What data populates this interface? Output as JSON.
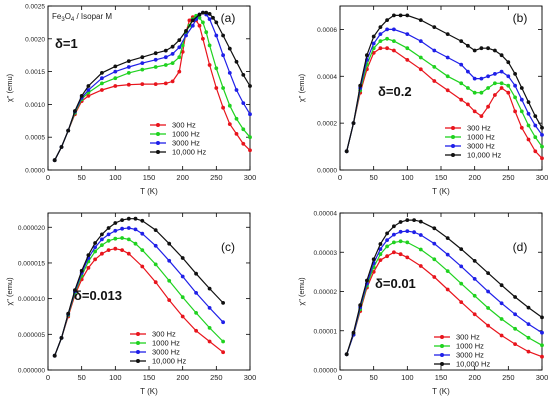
{
  "figure": {
    "xlabel": "T (K)",
    "legend_labels": [
      "300 Hz",
      "1000 Hz",
      "3000 Hz",
      "10,000 Hz"
    ],
    "series_colors": [
      "#e8141c",
      "#1fd21f",
      "#1f1fe8",
      "#101010"
    ]
  },
  "chart_data": [
    {
      "type": "line",
      "panel": "(a)",
      "annotation_pre": "Fe",
      "annotation_sub1": "3",
      "annotation_mid": "O",
      "annotation_sub2": "4",
      "annotation_post": " / Isopar M",
      "delta_label": "δ=1",
      "ylabel": "χ\" (emu)",
      "xlabel": "",
      "xlim": [
        0,
        300
      ],
      "ylim": [
        0,
        0.0025
      ],
      "xticks": [
        "0",
        "50",
        "100",
        "150",
        "200",
        "250",
        "300"
      ],
      "yticks": [
        "0.0000",
        "0.0005",
        "0.0010",
        "0.0015",
        "0.0020",
        "0.0025"
      ],
      "series": [
        {
          "name": "300 Hz",
          "x": [
            10,
            20,
            30,
            40,
            50,
            60,
            80,
            100,
            120,
            140,
            160,
            175,
            185,
            195,
            200,
            205,
            210,
            215,
            220,
            225,
            230,
            240,
            250,
            260,
            270,
            280,
            290,
            300
          ],
          "y": [
            0.00015,
            0.00035,
            0.0006,
            0.00085,
            0.00105,
            0.00113,
            0.00122,
            0.00128,
            0.0013,
            0.00131,
            0.00131,
            0.00132,
            0.00135,
            0.0015,
            0.0018,
            0.0021,
            0.00228,
            0.00233,
            0.00228,
            0.0022,
            0.002,
            0.0016,
            0.00125,
            0.00095,
            0.0007,
            0.00055,
            0.0004,
            0.0003
          ]
        },
        {
          "name": "1000 Hz",
          "x": [
            10,
            20,
            30,
            40,
            50,
            60,
            80,
            100,
            120,
            140,
            160,
            175,
            185,
            195,
            200,
            205,
            210,
            215,
            220,
            225,
            230,
            235,
            240,
            250,
            260,
            270,
            280,
            290,
            300
          ],
          "y": [
            0.00015,
            0.00035,
            0.0006,
            0.00087,
            0.00108,
            0.00118,
            0.00132,
            0.0014,
            0.00148,
            0.00153,
            0.00157,
            0.0016,
            0.00163,
            0.00172,
            0.0019,
            0.0021,
            0.0022,
            0.0023,
            0.00235,
            0.00232,
            0.00225,
            0.0021,
            0.0019,
            0.00155,
            0.00125,
            0.00098,
            0.00078,
            0.00062,
            0.0005
          ]
        },
        {
          "name": "3000 Hz",
          "x": [
            10,
            20,
            30,
            40,
            50,
            60,
            80,
            100,
            120,
            140,
            160,
            175,
            185,
            195,
            205,
            215,
            220,
            225,
            230,
            235,
            240,
            250,
            260,
            270,
            280,
            290,
            300
          ],
          "y": [
            0.00015,
            0.00035,
            0.0006,
            0.00089,
            0.0011,
            0.00122,
            0.0014,
            0.0015,
            0.00157,
            0.00163,
            0.00168,
            0.00172,
            0.00177,
            0.00187,
            0.00205,
            0.0022,
            0.0023,
            0.00237,
            0.0024,
            0.00237,
            0.0023,
            0.00205,
            0.00175,
            0.00148,
            0.00122,
            0.00102,
            0.00085
          ]
        },
        {
          "name": "10,000 Hz",
          "x": [
            10,
            20,
            30,
            40,
            50,
            60,
            80,
            100,
            120,
            140,
            160,
            175,
            185,
            195,
            205,
            215,
            225,
            230,
            235,
            240,
            245,
            250,
            260,
            270,
            280,
            290,
            300
          ],
          "y": [
            0.00015,
            0.00035,
            0.0006,
            0.0009,
            0.00113,
            0.00128,
            0.00148,
            0.00158,
            0.00166,
            0.00172,
            0.00178,
            0.00182,
            0.00188,
            0.00198,
            0.00212,
            0.00228,
            0.00237,
            0.0024,
            0.0024,
            0.00238,
            0.00232,
            0.00225,
            0.00205,
            0.00185,
            0.00165,
            0.00145,
            0.00128
          ]
        }
      ]
    },
    {
      "type": "line",
      "panel": "(b)",
      "delta_label": "δ=0.2",
      "ylabel": "χ\" (emu)",
      "xlabel": "",
      "xlim": [
        0,
        300
      ],
      "ylim": [
        0,
        0.0007
      ],
      "xticks": [
        "0",
        "50",
        "100",
        "150",
        "200",
        "250",
        "300"
      ],
      "yticks": [
        "0.0000",
        "0.0002",
        "0.0004",
        "0.0006"
      ],
      "series": [
        {
          "name": "300 Hz",
          "x": [
            10,
            20,
            30,
            40,
            50,
            60,
            70,
            80,
            100,
            120,
            140,
            160,
            180,
            190,
            200,
            210,
            220,
            230,
            240,
            250,
            260,
            270,
            280,
            290,
            300
          ],
          "y": [
            8e-05,
            0.0002,
            0.00033,
            0.00043,
            0.0005,
            0.00052,
            0.00052,
            0.00051,
            0.00047,
            0.00043,
            0.00038,
            0.00034,
            0.0003,
            0.00028,
            0.00025,
            0.00023,
            0.00027,
            0.00032,
            0.00035,
            0.00033,
            0.00025,
            0.00018,
            0.00013,
            8e-05,
            5e-05
          ]
        },
        {
          "name": "1000 Hz",
          "x": [
            10,
            20,
            30,
            40,
            50,
            60,
            70,
            80,
            100,
            120,
            140,
            160,
            180,
            190,
            200,
            210,
            220,
            230,
            240,
            250,
            260,
            270,
            280,
            290,
            300
          ],
          "y": [
            8e-05,
            0.0002,
            0.00034,
            0.00045,
            0.00052,
            0.00055,
            0.00056,
            0.00055,
            0.00052,
            0.00048,
            0.00044,
            0.0004,
            0.00037,
            0.00035,
            0.00033,
            0.00033,
            0.00035,
            0.00037,
            0.00037,
            0.00036,
            0.00031,
            0.00025,
            0.00019,
            0.00014,
            0.0001
          ]
        },
        {
          "name": "3000 Hz",
          "x": [
            10,
            20,
            30,
            40,
            50,
            60,
            70,
            80,
            100,
            120,
            140,
            160,
            180,
            190,
            200,
            210,
            220,
            230,
            240,
            250,
            260,
            270,
            280,
            290,
            300
          ],
          "y": [
            8e-05,
            0.0002,
            0.00035,
            0.00047,
            0.00054,
            0.00058,
            0.0006,
            0.0006,
            0.00058,
            0.00055,
            0.00051,
            0.00048,
            0.00045,
            0.00042,
            0.00039,
            0.00039,
            0.0004,
            0.00041,
            0.00042,
            0.0004,
            0.00036,
            0.0003,
            0.00024,
            0.00019,
            0.00015
          ]
        },
        {
          "name": "10,000 Hz",
          "x": [
            10,
            20,
            30,
            40,
            50,
            60,
            70,
            80,
            90,
            100,
            120,
            140,
            160,
            180,
            190,
            200,
            210,
            220,
            230,
            240,
            250,
            260,
            270,
            280,
            290,
            300
          ],
          "y": [
            8e-05,
            0.0002,
            0.00036,
            0.00049,
            0.00057,
            0.00061,
            0.00064,
            0.00066,
            0.00066,
            0.00066,
            0.00064,
            0.00061,
            0.00058,
            0.00055,
            0.00053,
            0.00051,
            0.00052,
            0.00052,
            0.00051,
            0.00049,
            0.00046,
            0.00041,
            0.00035,
            0.00029,
            0.00023,
            0.00018
          ]
        }
      ]
    },
    {
      "type": "line",
      "panel": "(c)",
      "delta_label": "δ=0.013",
      "ylabel": "χ\" (emu)",
      "xlabel": "",
      "xlim": [
        0,
        300
      ],
      "ylim": [
        0,
        2.2e-05
      ],
      "xticks": [
        "0",
        "50",
        "100",
        "150",
        "200",
        "250",
        "300"
      ],
      "yticks": [
        "0.000000",
        "0.000005",
        "0.000010",
        "0.000015",
        "0.000020"
      ],
      "series": [
        {
          "name": "300 Hz",
          "x": [
            10,
            20,
            30,
            40,
            50,
            60,
            70,
            80,
            90,
            100,
            110,
            120,
            140,
            160,
            180,
            200,
            220,
            240,
            260
          ],
          "y": [
            2e-06,
            4.5e-06,
            7.5e-06,
            1.05e-05,
            1.27e-05,
            1.43e-05,
            1.55e-05,
            1.63e-05,
            1.68e-05,
            1.7e-05,
            1.68e-05,
            1.63e-05,
            1.45e-05,
            1.23e-05,
            9.8e-06,
            7.5e-06,
            5.5e-06,
            4e-06,
            2.5e-06
          ]
        },
        {
          "name": "1000 Hz",
          "x": [
            10,
            20,
            30,
            40,
            50,
            60,
            70,
            80,
            90,
            100,
            110,
            120,
            130,
            140,
            160,
            180,
            200,
            220,
            240,
            260
          ],
          "y": [
            2e-06,
            4.5e-06,
            7.7e-06,
            1.08e-05,
            1.32e-05,
            1.52e-05,
            1.66e-05,
            1.75e-05,
            1.81e-05,
            1.84e-05,
            1.85e-05,
            1.83e-05,
            1.77e-05,
            1.68e-05,
            1.48e-05,
            1.25e-05,
            1.02e-05,
            8e-06,
            5.9e-06,
            4e-06
          ]
        },
        {
          "name": "3000 Hz",
          "x": [
            10,
            20,
            30,
            40,
            50,
            60,
            70,
            80,
            90,
            100,
            110,
            120,
            130,
            140,
            160,
            180,
            200,
            220,
            240,
            260
          ],
          "y": [
            2e-06,
            4.5e-06,
            7.8e-06,
            1.1e-05,
            1.36e-05,
            1.57e-05,
            1.72e-05,
            1.83e-05,
            1.9e-05,
            1.95e-05,
            1.98e-05,
            1.99e-05,
            1.97e-05,
            1.91e-05,
            1.74e-05,
            1.53e-05,
            1.31e-05,
            1.08e-05,
            8.7e-06,
            6.7e-06
          ]
        },
        {
          "name": "10,000 Hz",
          "x": [
            10,
            20,
            30,
            40,
            50,
            60,
            70,
            80,
            90,
            100,
            110,
            120,
            130,
            140,
            160,
            180,
            200,
            220,
            240,
            260
          ],
          "y": [
            2e-06,
            4.5e-06,
            7.9e-06,
            1.12e-05,
            1.39e-05,
            1.61e-05,
            1.78e-05,
            1.9e-05,
            1.99e-05,
            2.06e-05,
            2.1e-05,
            2.12e-05,
            2.12e-05,
            2.09e-05,
            1.96e-05,
            1.77e-05,
            1.57e-05,
            1.35e-05,
            1.14e-05,
            9.4e-06
          ]
        }
      ]
    },
    {
      "type": "line",
      "panel": "(d)",
      "delta_label": "δ=0.01",
      "ylabel": "χ\" (emu)",
      "xlabel": "T (K)",
      "xlim": [
        0,
        300
      ],
      "ylim": [
        0,
        4e-05
      ],
      "xticks": [
        "0",
        "50",
        "100",
        "150",
        "200",
        "250",
        "300"
      ],
      "yticks": [
        "0.00000",
        "0.00001",
        "0.00002",
        "0.00003",
        "0.00004"
      ],
      "series": [
        {
          "name": "300 Hz",
          "x": [
            10,
            20,
            30,
            40,
            50,
            60,
            70,
            80,
            90,
            100,
            120,
            140,
            160,
            180,
            200,
            220,
            240,
            260,
            280,
            300
          ],
          "y": [
            4e-06,
            9e-06,
            1.5e-05,
            2.1e-05,
            2.5e-05,
            2.8e-05,
            2.9e-05,
            3e-05,
            2.95e-05,
            2.87e-05,
            2.65e-05,
            2.37e-05,
            2.05e-05,
            1.73e-05,
            1.42e-05,
            1.13e-05,
            8.8e-06,
            6.6e-06,
            4.7e-06,
            3.4e-06
          ]
        },
        {
          "name": "1000 Hz",
          "x": [
            10,
            20,
            30,
            40,
            50,
            60,
            70,
            80,
            90,
            100,
            120,
            140,
            160,
            180,
            200,
            220,
            240,
            260,
            280,
            300
          ],
          "y": [
            4e-06,
            9e-06,
            1.55e-05,
            2.15e-05,
            2.62e-05,
            2.95e-05,
            3.15e-05,
            3.25e-05,
            3.28e-05,
            3.25e-05,
            3.07e-05,
            2.82e-05,
            2.52e-05,
            2.2e-05,
            1.89e-05,
            1.58e-05,
            1.3e-05,
            1.05e-05,
            8.2e-06,
            6.3e-06
          ]
        },
        {
          "name": "3000 Hz",
          "x": [
            10,
            20,
            30,
            40,
            50,
            60,
            70,
            80,
            90,
            100,
            110,
            120,
            140,
            160,
            180,
            200,
            220,
            240,
            260,
            280,
            300
          ],
          "y": [
            4e-06,
            9e-06,
            1.6e-05,
            2.2e-05,
            2.72e-05,
            3.08e-05,
            3.31e-05,
            3.45e-05,
            3.52e-05,
            3.54e-05,
            3.51e-05,
            3.44e-05,
            3.22e-05,
            2.94e-05,
            2.64e-05,
            2.32e-05,
            2e-05,
            1.7e-05,
            1.42e-05,
            1.17e-05,
            9.5e-06
          ]
        },
        {
          "name": "10,000 Hz",
          "x": [
            10,
            20,
            30,
            40,
            50,
            60,
            70,
            80,
            90,
            100,
            110,
            120,
            140,
            160,
            180,
            200,
            220,
            240,
            260,
            280,
            300
          ],
          "y": [
            4e-06,
            9.5e-06,
            1.65e-05,
            2.28e-05,
            2.82e-05,
            3.21e-05,
            3.48e-05,
            3.66e-05,
            3.77e-05,
            3.82e-05,
            3.82e-05,
            3.78e-05,
            3.61e-05,
            3.36e-05,
            3.08e-05,
            2.78e-05,
            2.47e-05,
            2.16e-05,
            1.86e-05,
            1.59e-05,
            1.34e-05
          ]
        }
      ]
    }
  ]
}
